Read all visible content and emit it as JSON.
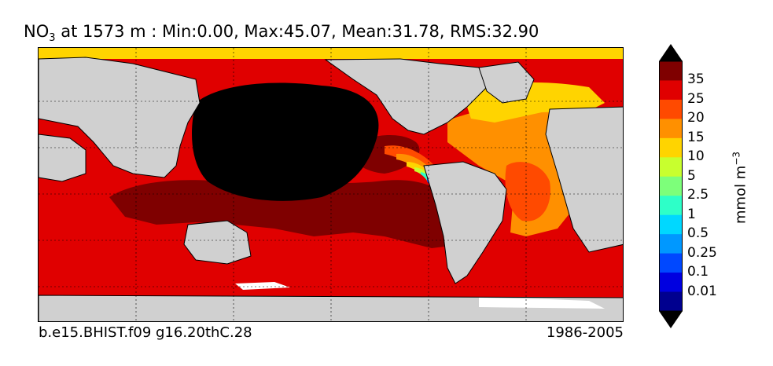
{
  "title": {
    "variable": "NO",
    "subscript": "3",
    "rest": " at 1573 m : Min:0.00, Max:45.07, Mean:31.78, RMS:32.90"
  },
  "case_name": "b.e15.BHIST.f09 g16.20thC.28",
  "period": "1986-2005",
  "colorbar": {
    "unit_base": "mmol m",
    "unit_exp": "−3",
    "tick_labels": [
      "35",
      "25",
      "20",
      "15",
      "10",
      "5",
      "2.5",
      "1",
      "0.5",
      "0.25",
      "0.1",
      "0.01"
    ],
    "colors_top_to_bottom": [
      "#7f0000",
      "#e00000",
      "#ff4a00",
      "#ff9000",
      "#ffd400",
      "#c8ff2e",
      "#7dff7a",
      "#2effc8",
      "#00d8ff",
      "#0098ff",
      "#0048ff",
      "#0000e0",
      "#00008f"
    ]
  },
  "map_colors": {
    "land": "#d0d0d0",
    "missing": "#ffffff",
    "gt35": "#7f0000",
    "25_35": "#e00000",
    "20_25": "#ff4a00",
    "15_20": "#ff9000",
    "10_15": "#ffd400",
    "5_10": "#c8ff2e",
    "high_north_pacific": "#000000"
  }
}
